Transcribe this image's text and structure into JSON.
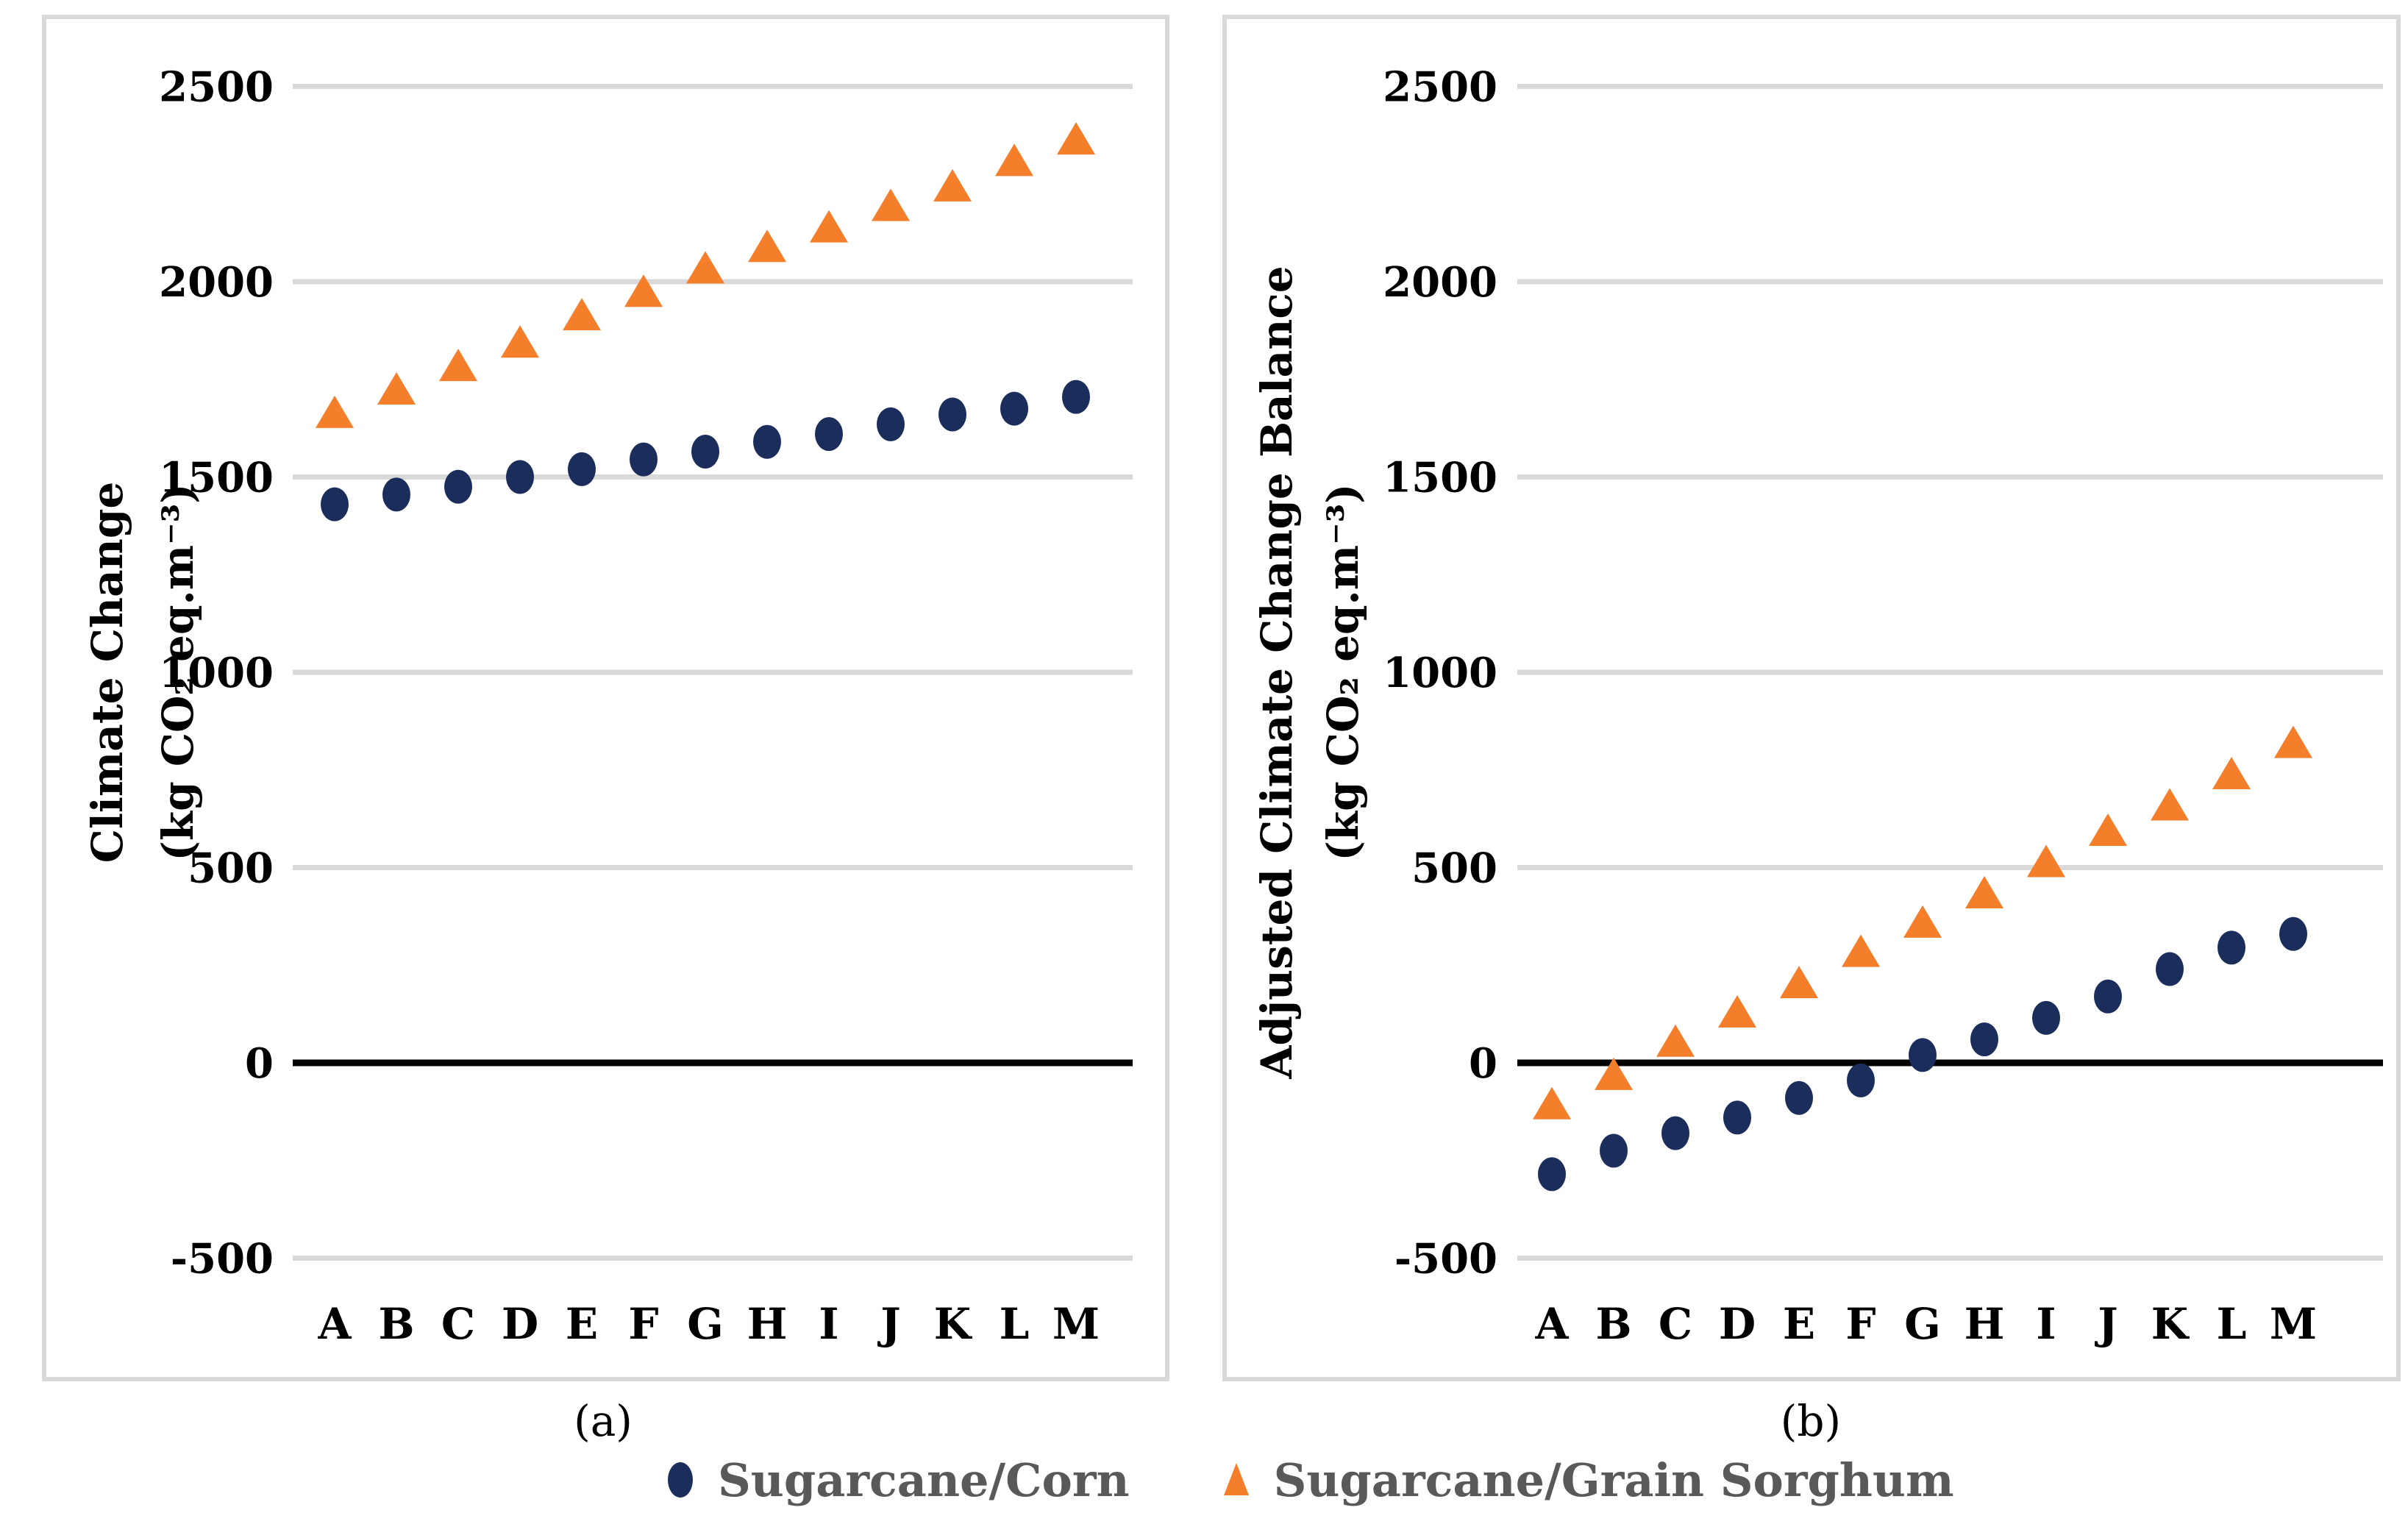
{
  "figure": {
    "caption_a": "(a)",
    "caption_b": "(b)",
    "background_color": "#ffffff",
    "gridline_color": "#d9d9d9",
    "zero_line_color": "#000000"
  },
  "legend": {
    "position": "bottom-center",
    "text_color": "#595959",
    "items": [
      {
        "label": "Sugarcane/Corn",
        "marker": "circle-icon",
        "color": "#1b2e5b"
      },
      {
        "label": "Sugarcane/Grain Sorghum",
        "marker": "triangle-icon",
        "color": "#f57e2b"
      }
    ]
  },
  "chart_data": [
    {
      "id": "a",
      "type": "scatter",
      "title": "",
      "xlabel": "",
      "ylabel_line1": "Climate Change",
      "ylabel_line2": "(kg CO₂ eq.m⁻³)",
      "categories": [
        "A",
        "B",
        "C",
        "D",
        "E",
        "F",
        "G",
        "H",
        "I",
        "J",
        "K",
        "L",
        "M"
      ],
      "series": [
        {
          "name": "Sugarcane/Corn",
          "marker": "circle",
          "color": "#1b2e5b",
          "values": [
            1430,
            1455,
            1475,
            1500,
            1520,
            1545,
            1565,
            1590,
            1610,
            1635,
            1660,
            1675,
            1705
          ]
        },
        {
          "name": "Sugarcane/Grain Sorghum",
          "marker": "triangle",
          "color": "#f57e2b",
          "values": [
            1665,
            1725,
            1785,
            1845,
            1915,
            1975,
            2035,
            2090,
            2140,
            2195,
            2245,
            2310,
            2365
          ]
        }
      ],
      "ylim": [
        -500,
        2500
      ],
      "yticks": [
        2500,
        2000,
        1500,
        1000,
        500,
        0,
        -500
      ],
      "grid": true,
      "zero_line": true,
      "legend_position": "bottom"
    },
    {
      "id": "b",
      "type": "scatter",
      "title": "",
      "xlabel": "",
      "ylabel_line1": "Adjusted Climate Change Balance",
      "ylabel_line2": "(kg CO₂ eq.m⁻³)",
      "categories": [
        "A",
        "B",
        "C",
        "D",
        "E",
        "F",
        "G",
        "H",
        "I",
        "J",
        "K",
        "L",
        "M"
      ],
      "series": [
        {
          "name": "Sugarcane/Corn",
          "marker": "circle",
          "color": "#1b2e5b",
          "values": [
            -285,
            -225,
            -180,
            -140,
            -90,
            -45,
            20,
            60,
            115,
            170,
            240,
            295,
            330
          ]
        },
        {
          "name": "Sugarcane/Grain Sorghum",
          "marker": "triangle",
          "color": "#f57e2b",
          "values": [
            -105,
            -30,
            55,
            130,
            205,
            285,
            360,
            435,
            515,
            595,
            660,
            740,
            820
          ]
        }
      ],
      "ylim": [
        -500,
        2500
      ],
      "yticks": [
        2500,
        2000,
        1500,
        1000,
        500,
        0,
        -500
      ],
      "grid": true,
      "zero_line": true,
      "legend_position": "bottom"
    }
  ]
}
